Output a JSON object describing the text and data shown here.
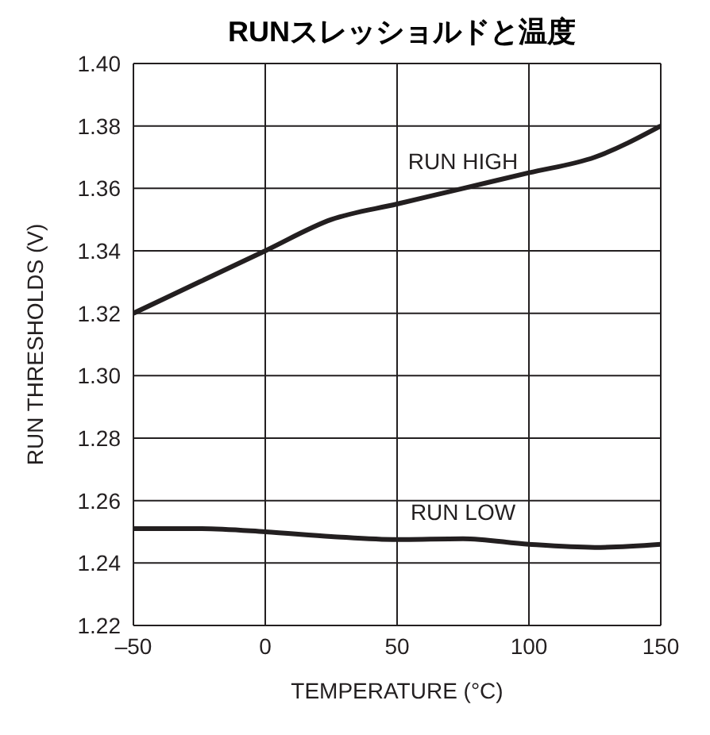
{
  "chart_data": {
    "type": "line",
    "title": "RUNスレッショルドと温度",
    "xlabel": "TEMPERATURE (°C)",
    "ylabel": "RUN THRESHOLDS (V)",
    "x": [
      -50,
      -25,
      0,
      25,
      50,
      75,
      100,
      125,
      150
    ],
    "series": [
      {
        "name": "RUN HIGH",
        "color": "#231f20",
        "values": [
          1.32,
          1.33,
          1.34,
          1.35,
          1.355,
          1.36,
          1.365,
          1.37,
          1.38
        ]
      },
      {
        "name": "RUN LOW",
        "color": "#231f20",
        "values": [
          1.251,
          1.251,
          1.25,
          1.2485,
          1.2475,
          1.2478,
          1.246,
          1.245,
          1.246
        ]
      }
    ],
    "xlim": [
      -50,
      150
    ],
    "xticks": [
      {
        "value": -50,
        "label": "–50"
      },
      0,
      50,
      100,
      150
    ],
    "ylim": [
      1.22,
      1.4
    ],
    "yticks": [
      {
        "value": 1.22,
        "label": "1.22"
      },
      {
        "value": 1.24,
        "label": "1.24"
      },
      {
        "value": 1.26,
        "label": "1.26"
      },
      {
        "value": 1.28,
        "label": "1.28"
      },
      {
        "value": 1.3,
        "label": "1.30"
      },
      {
        "value": 1.32,
        "label": "1.32"
      },
      {
        "value": 1.34,
        "label": "1.34"
      },
      {
        "value": 1.36,
        "label": "1.36"
      },
      {
        "value": 1.38,
        "label": "1.38"
      },
      {
        "value": 1.4,
        "label": "1.40"
      }
    ],
    "grid": true,
    "legend": false,
    "marker": "none",
    "line_style": "solid"
  }
}
